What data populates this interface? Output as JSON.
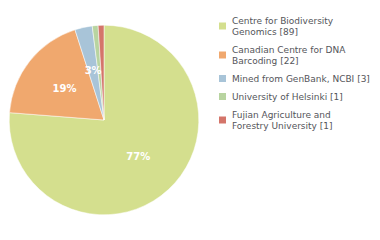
{
  "chart_data": {
    "type": "pie",
    "categories": [
      "Centre for Biodiversity\nGenomics [89]",
      "Canadian Centre for DNA\nBarcoding [22]",
      "Mined from GenBank, NCBI [3]",
      "University of Helsinki [1]",
      "Fujian Agriculture and\nForestry University [1]"
    ],
    "values": [
      77,
      19,
      3,
      1,
      1
    ],
    "value_labels": [
      "77%",
      "19%",
      "3%",
      null,
      null
    ],
    "colors": [
      "#d4df8e",
      "#f0a86e",
      "#a8c4d8",
      "#b8d4a0",
      "#d4756a"
    ],
    "data_labels": true,
    "legend": "upper right"
  }
}
